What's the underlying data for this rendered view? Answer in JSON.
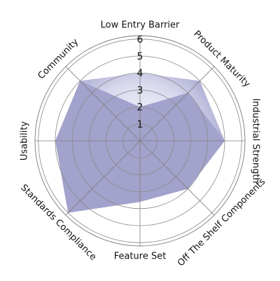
{
  "chart_data": {
    "type": "radar",
    "title": "",
    "axes": [
      "Low Entry Barrier",
      "Product Maturity",
      "Industrial Strength",
      "Off The Shelf Components",
      "Feature Set",
      "Standards Compliance",
      "Usability",
      "Community"
    ],
    "ticks": [
      "1",
      "2",
      "3",
      "4",
      "5",
      "6"
    ],
    "range": [
      0,
      6.5
    ],
    "grid": true,
    "series": [
      {
        "values": [
          4.0,
          5.0,
          5.0,
          3.8,
          3.6,
          6.0,
          5.0,
          5.0
        ],
        "color": "#8c8cc0",
        "highlight": "#ffffff"
      },
      {
        "values": [
          2.0,
          4.0,
          5.0,
          4.0,
          3.6,
          6.0,
          5.0,
          5.0
        ],
        "color": "#a2a2cc"
      }
    ]
  }
}
